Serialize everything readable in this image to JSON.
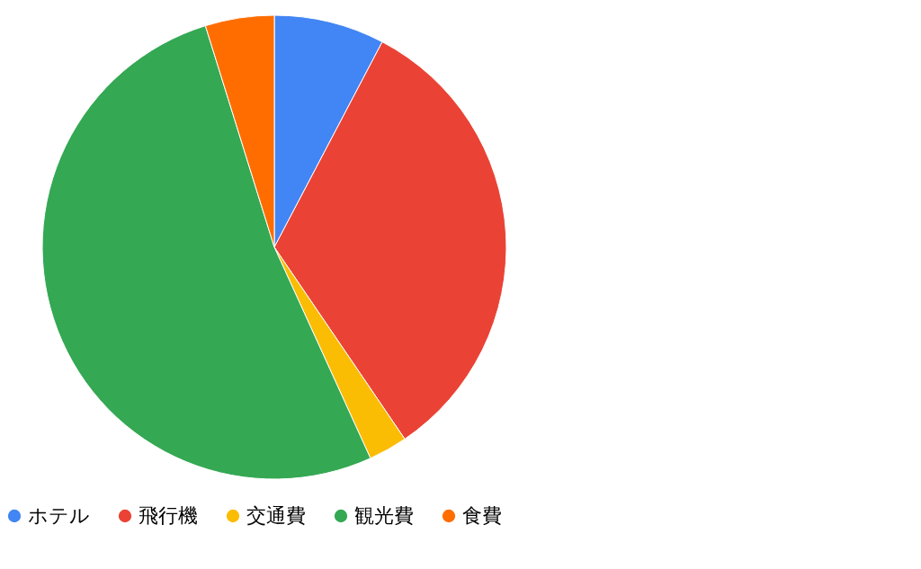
{
  "chart_data": {
    "type": "pie",
    "categories": [
      "ホテル",
      "飛行機",
      "交通費",
      "観光費",
      "食費"
    ],
    "values": [
      7.7,
      32.8,
      2.7,
      52.0,
      4.8
    ],
    "colors": [
      "#4285f4",
      "#ea4335",
      "#fbbc04",
      "#34a853",
      "#ff6d01"
    ],
    "legend": "bottom"
  }
}
